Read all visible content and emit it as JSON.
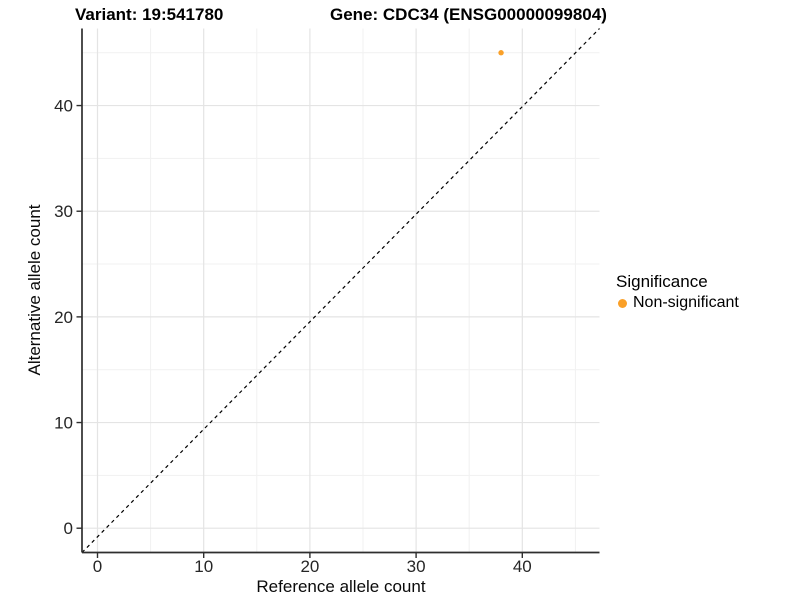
{
  "chart_data": {
    "type": "scatter",
    "titles": {
      "left": "Variant: 19:541780",
      "right": "Gene: CDC34 (ENSG00000099804)"
    },
    "xlabel": "Reference allele count",
    "ylabel": "Alternative allele count",
    "xlim": [
      0,
      45
    ],
    "ylim": [
      0,
      45
    ],
    "x_major_ticks": [
      0,
      10,
      20,
      30,
      40
    ],
    "x_minor_ticks": [
      5,
      15,
      25,
      35,
      45
    ],
    "y_major_ticks": [
      0,
      10,
      20,
      30,
      40
    ],
    "y_minor_ticks": [
      5,
      15,
      25,
      35,
      45
    ],
    "grid": "major+minor",
    "points": [
      {
        "x": 38,
        "y": 45,
        "series": "Non-significant",
        "color": "#FAA028"
      }
    ],
    "reference_line": {
      "kind": "identity",
      "style": "dashed",
      "color": "#000000"
    },
    "legend": {
      "title": "Significance",
      "position": "right",
      "items": [
        {
          "label": "Non-significant",
          "color": "#FAA028"
        }
      ]
    },
    "colors": {
      "point": "#FAA028",
      "grid_major": "#E4E4E4",
      "grid_minor": "#F1F1F1",
      "axis": "#2E2E2E",
      "tick_label": "#262626",
      "background": "#FFFFFF"
    }
  }
}
